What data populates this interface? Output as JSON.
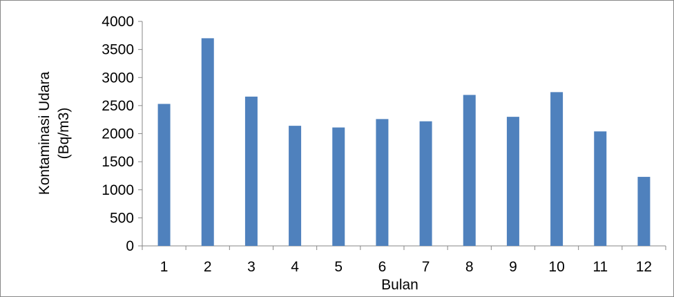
{
  "chart_data": {
    "type": "bar",
    "xlabel": "Bulan",
    "ylabel_lines": [
      "Kontaminasi Udara",
      "(Bq/m3)"
    ],
    "categories": [
      "1",
      "2",
      "3",
      "4",
      "5",
      "6",
      "7",
      "8",
      "9",
      "10",
      "11",
      "12"
    ],
    "values": [
      2530,
      3700,
      2660,
      2140,
      2110,
      2260,
      2220,
      2690,
      2300,
      2740,
      2040,
      1230
    ],
    "ylim": [
      0,
      4000
    ],
    "yticks": [
      0,
      500,
      1000,
      1500,
      2000,
      2500,
      3000,
      3500,
      4000
    ],
    "grid": false,
    "legend": "none",
    "bar_color": "#4F81BD",
    "axis_color": "#868686"
  }
}
